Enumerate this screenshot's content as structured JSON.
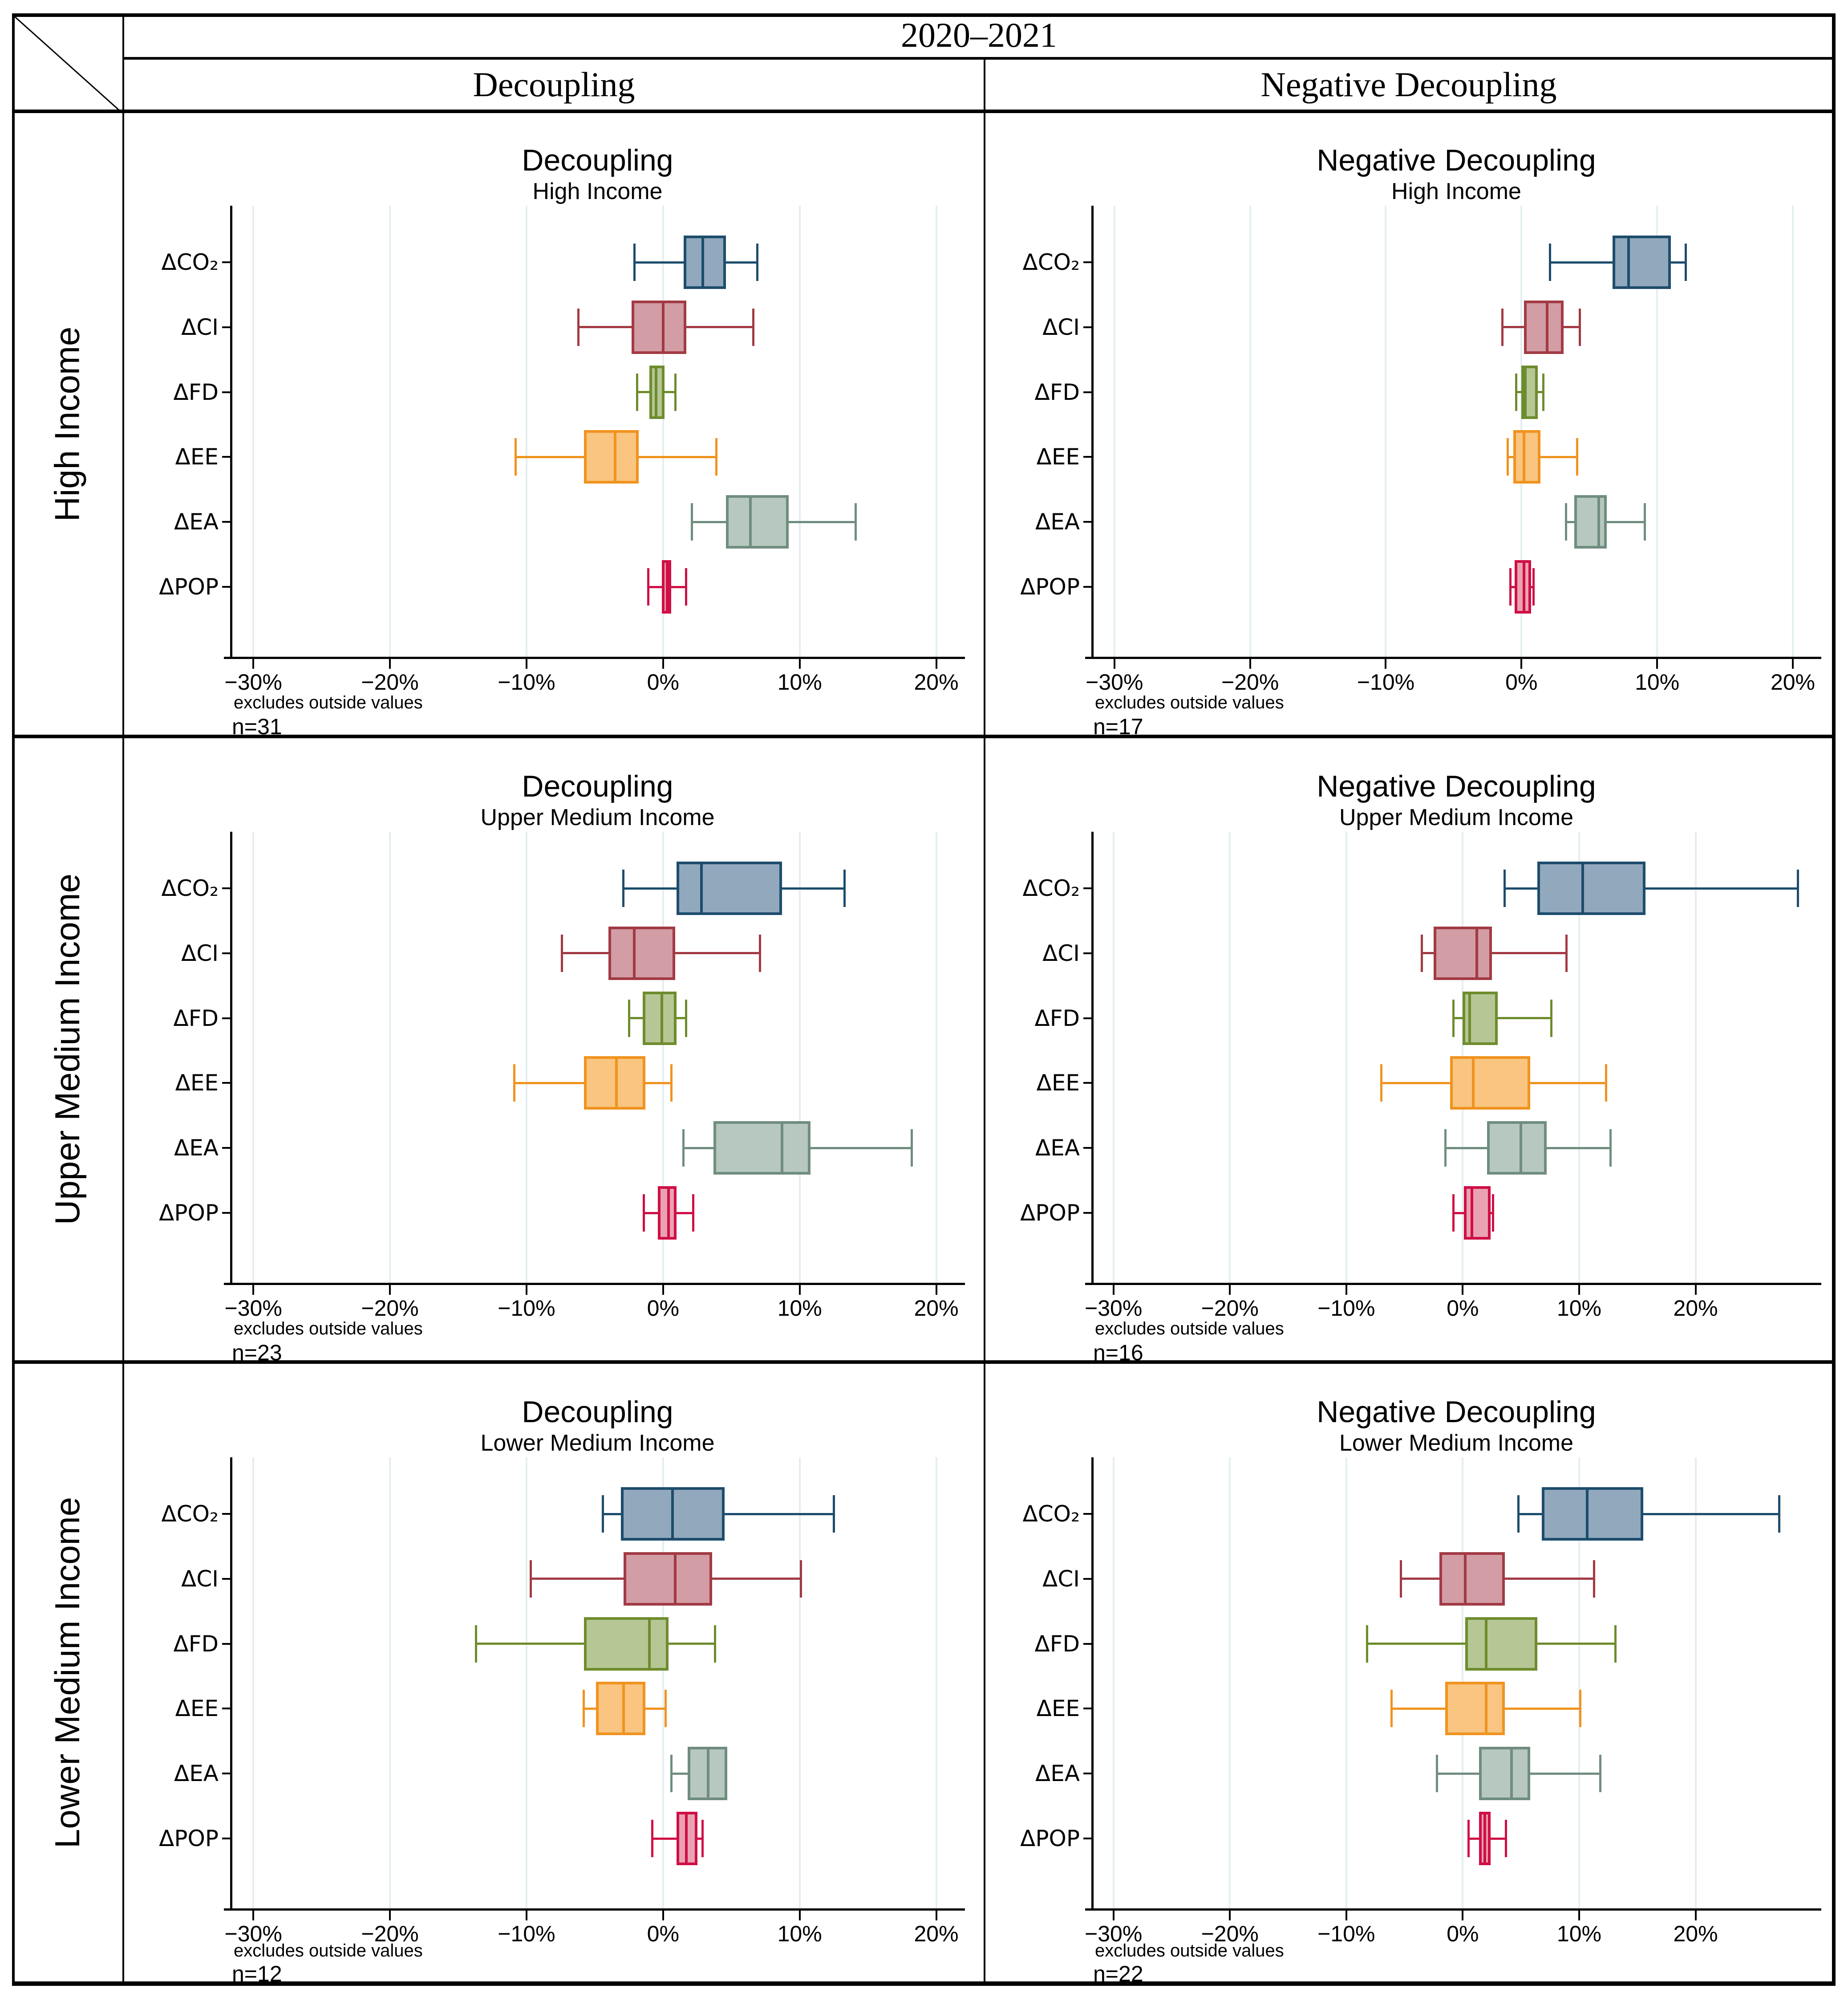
{
  "table": {
    "period": "2020–2021",
    "col_headers": [
      "Decoupling",
      "Negative Decoupling"
    ],
    "row_headers": [
      "High Income",
      "Upper Medium Income",
      "Lower Medium Income"
    ]
  },
  "palette": {
    "co2": {
      "stroke": "#1d4d6d",
      "fill": "#91a8bd"
    },
    "ci": {
      "stroke": "#a23a44",
      "fill": "#d29da4"
    },
    "fd": {
      "stroke": "#6e8c2d",
      "fill": "#b6c795"
    },
    "ee": {
      "stroke": "#f0931f",
      "fill": "#f9c580"
    },
    "ea": {
      "stroke": "#708d7f",
      "fill": "#b6c8bf"
    },
    "pop": {
      "stroke": "#cf0f45",
      "fill": "#e9a2b2"
    }
  },
  "grid_color": "#e4eef1",
  "chart_data": [
    {
      "type": "box",
      "title": "Decoupling",
      "subtitle": "High Income",
      "note": "excludes outside values",
      "n_label": "n=31",
      "x_ticks": [
        -30,
        -20,
        -10,
        0,
        10,
        20
      ],
      "x_min": -31.7,
      "x_max": 22.1,
      "categories": [
        "ΔCO₂",
        "ΔCI",
        "ΔFD",
        "ΔEE",
        "ΔEA",
        "ΔPOP"
      ],
      "series": [
        {
          "name": "ΔCO₂",
          "color_key": "co2",
          "low": -2.1,
          "q1": 1.5,
          "median": 2.9,
          "q3": 4.6,
          "high": 6.9
        },
        {
          "name": "ΔCI",
          "color_key": "ci",
          "low": -6.2,
          "q1": -2.3,
          "median": 0.0,
          "q3": 1.7,
          "high": 6.6
        },
        {
          "name": "ΔFD",
          "color_key": "fd",
          "low": -1.9,
          "q1": -1.0,
          "median": -0.5,
          "q3": 0.1,
          "high": 0.9
        },
        {
          "name": "ΔEE",
          "color_key": "ee",
          "low": -10.8,
          "q1": -5.8,
          "median": -3.5,
          "q3": -1.8,
          "high": 3.9
        },
        {
          "name": "ΔEA",
          "color_key": "ea",
          "low": 2.1,
          "q1": 4.6,
          "median": 6.4,
          "q3": 9.2,
          "high": 14.1
        },
        {
          "name": "ΔPOP",
          "color_key": "pop",
          "low": -1.1,
          "q1": -0.1,
          "median": 0.3,
          "q3": 0.6,
          "high": 1.7
        }
      ]
    },
    {
      "type": "box",
      "title": "Negative Decoupling",
      "subtitle": "High Income",
      "note": "excludes outside values",
      "n_label": "n=17",
      "x_ticks": [
        -30,
        -20,
        -10,
        0,
        10,
        20
      ],
      "x_min": -31.7,
      "x_max": 22.1,
      "categories": [
        "ΔCO₂",
        "ΔCI",
        "ΔFD",
        "ΔEE",
        "ΔEA",
        "ΔPOP"
      ],
      "series": [
        {
          "name": "ΔCO₂",
          "color_key": "co2",
          "low": 2.1,
          "q1": 6.7,
          "median": 7.9,
          "q3": 11.0,
          "high": 12.1
        },
        {
          "name": "ΔCI",
          "color_key": "ci",
          "low": -1.4,
          "q1": 0.2,
          "median": 1.9,
          "q3": 3.1,
          "high": 4.3
        },
        {
          "name": "ΔFD",
          "color_key": "fd",
          "low": -0.4,
          "q1": 0.0,
          "median": 0.3,
          "q3": 1.2,
          "high": 1.6
        },
        {
          "name": "ΔEE",
          "color_key": "ee",
          "low": -1.0,
          "q1": -0.6,
          "median": 0.2,
          "q3": 1.4,
          "high": 4.1
        },
        {
          "name": "ΔEA",
          "color_key": "ea",
          "low": 3.3,
          "q1": 3.9,
          "median": 5.7,
          "q3": 6.3,
          "high": 9.1
        },
        {
          "name": "ΔPOP",
          "color_key": "pop",
          "low": -0.8,
          "q1": -0.5,
          "median": 0.2,
          "q3": 0.7,
          "high": 0.9
        }
      ]
    },
    {
      "type": "box",
      "title": "Decoupling",
      "subtitle": "Upper Medium Income",
      "note": "excludes outside values",
      "n_label": "n=23",
      "x_ticks": [
        -30,
        -20,
        -10,
        0,
        10,
        20
      ],
      "x_min": -31.7,
      "x_max": 22.1,
      "categories": [
        "ΔCO₂",
        "ΔCI",
        "ΔFD",
        "ΔEE",
        "ΔEA",
        "ΔPOP"
      ],
      "series": [
        {
          "name": "ΔCO₂",
          "color_key": "co2",
          "low": -2.9,
          "q1": 1.0,
          "median": 2.8,
          "q3": 8.7,
          "high": 13.3
        },
        {
          "name": "ΔCI",
          "color_key": "ci",
          "low": -7.4,
          "q1": -4.0,
          "median": -2.1,
          "q3": 0.9,
          "high": 7.1
        },
        {
          "name": "ΔFD",
          "color_key": "fd",
          "low": -2.5,
          "q1": -1.5,
          "median": -0.1,
          "q3": 1.0,
          "high": 1.7
        },
        {
          "name": "ΔEE",
          "color_key": "ee",
          "low": -10.9,
          "q1": -5.8,
          "median": -3.4,
          "q3": -1.3,
          "high": 0.6
        },
        {
          "name": "ΔEA",
          "color_key": "ea",
          "low": 1.5,
          "q1": 3.7,
          "median": 8.7,
          "q3": 10.8,
          "high": 18.2
        },
        {
          "name": "ΔPOP",
          "color_key": "pop",
          "low": -1.4,
          "q1": -0.4,
          "median": 0.4,
          "q3": 1.0,
          "high": 2.2
        }
      ]
    },
    {
      "type": "box",
      "title": "Negative Decoupling",
      "subtitle": "Upper Medium Income",
      "note": "excludes outside values",
      "n_label": "n=16",
      "x_ticks": [
        -30,
        -20,
        -10,
        0,
        10,
        20
      ],
      "x_min": -31.9,
      "x_max": 30.8,
      "categories": [
        "ΔCO₂",
        "ΔCI",
        "ΔFD",
        "ΔEE",
        "ΔEA",
        "ΔPOP"
      ],
      "series": [
        {
          "name": "ΔCO₂",
          "color_key": "co2",
          "low": 3.6,
          "q1": 6.4,
          "median": 10.3,
          "q3": 15.7,
          "high": 28.8
        },
        {
          "name": "ΔCI",
          "color_key": "ci",
          "low": -3.5,
          "q1": -2.5,
          "median": 1.2,
          "q3": 2.5,
          "high": 8.9
        },
        {
          "name": "ΔFD",
          "color_key": "fd",
          "low": -0.8,
          "q1": 0.0,
          "median": 0.6,
          "q3": 3.0,
          "high": 7.6
        },
        {
          "name": "ΔEE",
          "color_key": "ee",
          "low": -7.0,
          "q1": -1.1,
          "median": 0.9,
          "q3": 5.8,
          "high": 12.3
        },
        {
          "name": "ΔEA",
          "color_key": "ea",
          "low": -1.5,
          "q1": 2.1,
          "median": 5.0,
          "q3": 7.2,
          "high": 12.7
        },
        {
          "name": "ΔPOP",
          "color_key": "pop",
          "low": -0.8,
          "q1": 0.1,
          "median": 0.8,
          "q3": 2.4,
          "high": 2.6
        }
      ]
    },
    {
      "type": "box",
      "title": "Decoupling",
      "subtitle": "Lower Medium Income",
      "note": "excludes outside values",
      "n_label": "n=12",
      "x_ticks": [
        -30,
        -20,
        -10,
        0,
        10,
        20
      ],
      "x_min": -31.7,
      "x_max": 22.1,
      "categories": [
        "ΔCO₂",
        "ΔCI",
        "ΔFD",
        "ΔEE",
        "ΔEA",
        "ΔPOP"
      ],
      "series": [
        {
          "name": "ΔCO₂",
          "color_key": "co2",
          "low": -4.4,
          "q1": -3.1,
          "median": 0.7,
          "q3": 4.5,
          "high": 12.5
        },
        {
          "name": "ΔCI",
          "color_key": "ci",
          "low": -9.7,
          "q1": -2.9,
          "median": 0.9,
          "q3": 3.6,
          "high": 10.1
        },
        {
          "name": "ΔFD",
          "color_key": "fd",
          "low": -13.7,
          "q1": -5.8,
          "median": -1.0,
          "q3": 0.4,
          "high": 3.8
        },
        {
          "name": "ΔEE",
          "color_key": "ee",
          "low": -5.8,
          "q1": -4.9,
          "median": -2.9,
          "q3": -1.3,
          "high": 0.2
        },
        {
          "name": "ΔEA",
          "color_key": "ea",
          "low": 0.6,
          "q1": 1.8,
          "median": 3.3,
          "q3": 4.7,
          "high": 4.7
        },
        {
          "name": "ΔPOP",
          "color_key": "pop",
          "low": -0.8,
          "q1": 1.0,
          "median": 1.7,
          "q3": 2.5,
          "high": 2.9
        }
      ]
    },
    {
      "type": "box",
      "title": "Negative Decoupling",
      "subtitle": "Lower Medium Income",
      "note": "excludes outside values",
      "n_label": "n=22",
      "x_ticks": [
        -30,
        -20,
        -10,
        0,
        10,
        20
      ],
      "x_min": -31.9,
      "x_max": 30.8,
      "categories": [
        "ΔCO₂",
        "ΔCI",
        "ΔFD",
        "ΔEE",
        "ΔEA",
        "ΔPOP"
      ],
      "series": [
        {
          "name": "ΔCO₂",
          "color_key": "co2",
          "low": 4.8,
          "q1": 6.8,
          "median": 10.7,
          "q3": 15.5,
          "high": 27.2
        },
        {
          "name": "ΔCI",
          "color_key": "ci",
          "low": -5.3,
          "q1": -2.0,
          "median": 0.2,
          "q3": 3.6,
          "high": 11.3
        },
        {
          "name": "ΔFD",
          "color_key": "fd",
          "low": -8.2,
          "q1": 0.2,
          "median": 2.0,
          "q3": 6.4,
          "high": 13.1
        },
        {
          "name": "ΔEE",
          "color_key": "ee",
          "low": -6.1,
          "q1": -1.5,
          "median": 2.0,
          "q3": 3.6,
          "high": 10.1
        },
        {
          "name": "ΔEA",
          "color_key": "ea",
          "low": -2.2,
          "q1": 1.4,
          "median": 4.2,
          "q3": 5.8,
          "high": 11.8
        },
        {
          "name": "ΔPOP",
          "color_key": "pop",
          "low": 0.5,
          "q1": 1.4,
          "median": 1.9,
          "q3": 2.4,
          "high": 3.7
        }
      ]
    }
  ]
}
